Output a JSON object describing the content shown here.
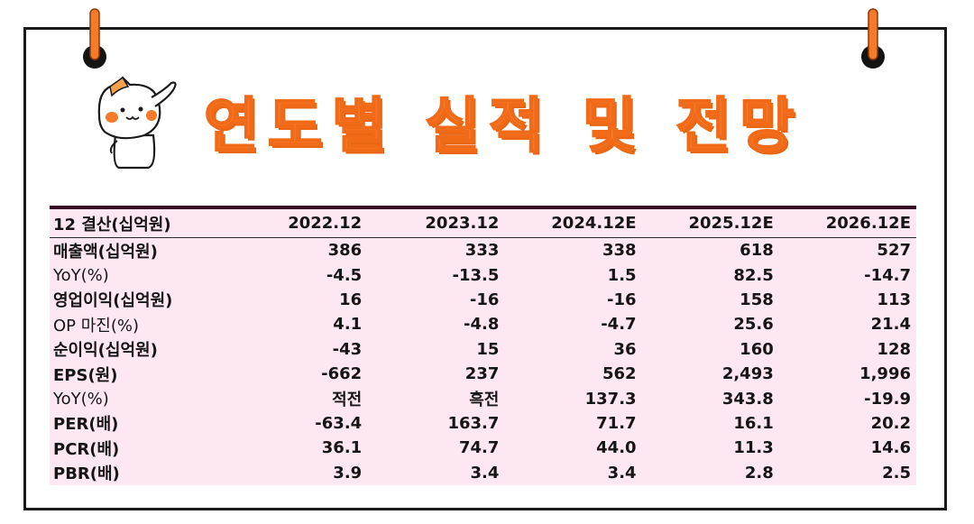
{
  "title": "연도별 실적 및 전망",
  "colors": {
    "accent": "#f57a2a",
    "table_bg": "#fde7f2",
    "top_rule": "#3a0a24",
    "pin": "#f57a2a"
  },
  "icons": {
    "mascot": "cat-mascot-saluting-icon",
    "pins": "binder-pin-icon"
  },
  "table": {
    "header": [
      "12 결산(십억원)",
      "2022.12",
      "2023.12",
      "2024.12E",
      "2025.12E",
      "2026.12E"
    ],
    "rows": [
      {
        "label": "매출액(십억원)",
        "style": "bold",
        "values": [
          "386",
          "333",
          "338",
          "618",
          "527"
        ]
      },
      {
        "label": "YoY(%)",
        "style": "light",
        "values": [
          "-4.5",
          "-13.5",
          "1.5",
          "82.5",
          "-14.7"
        ]
      },
      {
        "label": "영업이익(십억원)",
        "style": "bold",
        "values": [
          "16",
          "-16",
          "-16",
          "158",
          "113"
        ]
      },
      {
        "label": "OP 마진(%)",
        "style": "light",
        "values": [
          "4.1",
          "-4.8",
          "-4.7",
          "25.6",
          "21.4"
        ]
      },
      {
        "label": "순이익(십억원)",
        "style": "bold",
        "values": [
          "-43",
          "15",
          "36",
          "160",
          "128"
        ]
      },
      {
        "label": "EPS(원)",
        "style": "bold",
        "values": [
          "-662",
          "237",
          "562",
          "2,493",
          "1,996"
        ]
      },
      {
        "label": "YoY(%)",
        "style": "light",
        "values": [
          "적전",
          "흑전",
          "137.3",
          "343.8",
          "-19.9"
        ]
      },
      {
        "label": "PER(배)",
        "style": "bold",
        "values": [
          "-63.4",
          "163.7",
          "71.7",
          "16.1",
          "20.2"
        ]
      },
      {
        "label": "PCR(배)",
        "style": "bold",
        "values": [
          "36.1",
          "74.7",
          "44.0",
          "11.3",
          "14.6"
        ]
      },
      {
        "label": "PBR(배)",
        "style": "bold",
        "values": [
          "3.9",
          "3.4",
          "3.4",
          "2.8",
          "2.5"
        ]
      }
    ]
  }
}
